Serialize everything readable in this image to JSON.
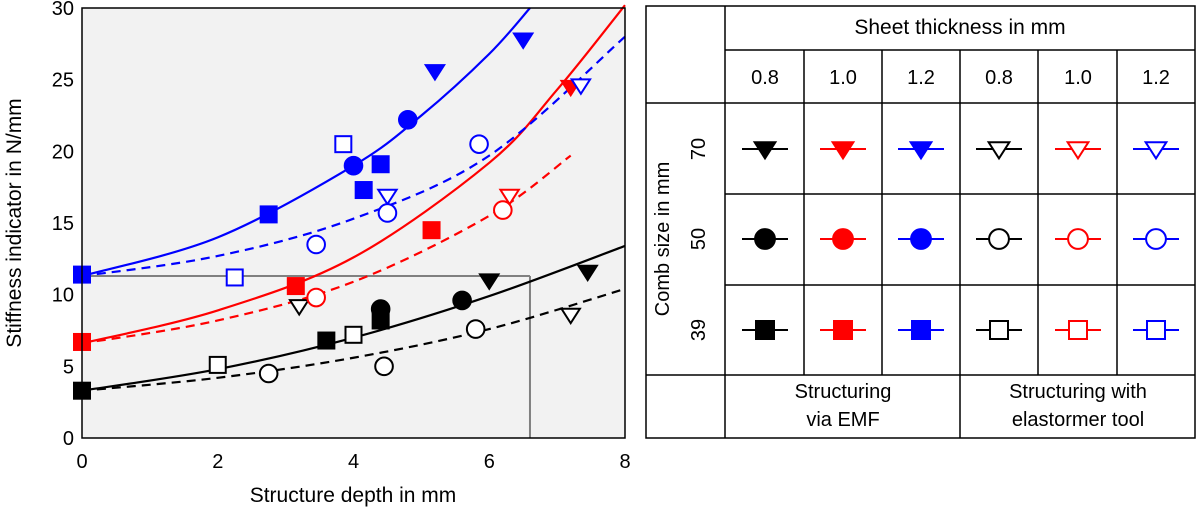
{
  "chart_data": {
    "type": "scatter",
    "title": "",
    "xlabel": "Structure depth in mm",
    "ylabel": "Stiffness indicator in N/mm",
    "xlim": [
      0,
      8
    ],
    "ylim": [
      0,
      30
    ],
    "xticks": [
      0,
      2,
      4,
      6,
      8
    ],
    "yticks": [
      0,
      5,
      10,
      15,
      20,
      25,
      30
    ],
    "colors": {
      "0.8": "#000000",
      "1.0": "#ff0000",
      "1.2": "#0000ff"
    },
    "reference_point": {
      "x": 6.6,
      "y": 11.3
    },
    "series": [
      {
        "name": "EMF 0.8 mm comb 70",
        "thickness": "0.8",
        "comb": 70,
        "method": "EMF",
        "points": [
          [
            6.0,
            11.0
          ],
          [
            7.45,
            11.6
          ]
        ]
      },
      {
        "name": "EMF 0.8 mm comb 50",
        "thickness": "0.8",
        "comb": 50,
        "method": "EMF",
        "points": [
          [
            4.4,
            9.0
          ],
          [
            5.6,
            9.6
          ]
        ]
      },
      {
        "name": "EMF 0.8 mm comb 39",
        "thickness": "0.8",
        "comb": 39,
        "method": "EMF",
        "points": [
          [
            0.0,
            3.3
          ],
          [
            3.6,
            6.8
          ],
          [
            4.4,
            8.2
          ]
        ]
      },
      {
        "name": "EMF 1.0 mm comb 70",
        "thickness": "1.0",
        "comb": 70,
        "method": "EMF",
        "points": [
          [
            7.2,
            24.5
          ]
        ]
      },
      {
        "name": "EMF 1.0 mm comb 50",
        "thickness": "1.0",
        "comb": 50,
        "method": "EMF",
        "points": []
      },
      {
        "name": "EMF 1.0 mm comb 39",
        "thickness": "1.0",
        "comb": 39,
        "method": "EMF",
        "points": [
          [
            0.0,
            6.7
          ],
          [
            3.15,
            10.6
          ],
          [
            5.15,
            14.5
          ]
        ]
      },
      {
        "name": "EMF 1.2 mm comb 70",
        "thickness": "1.2",
        "comb": 70,
        "method": "EMF",
        "points": [
          [
            5.2,
            25.6
          ],
          [
            6.5,
            27.8
          ]
        ]
      },
      {
        "name": "EMF 1.2 mm comb 50",
        "thickness": "1.2",
        "comb": 50,
        "method": "EMF",
        "points": [
          [
            4.0,
            19.0
          ],
          [
            4.8,
            22.2
          ]
        ]
      },
      {
        "name": "EMF 1.2 mm comb 39",
        "thickness": "1.2",
        "comb": 39,
        "method": "EMF",
        "points": [
          [
            0.0,
            11.4
          ],
          [
            2.75,
            15.6
          ],
          [
            4.15,
            17.3
          ],
          [
            4.4,
            19.1
          ]
        ]
      },
      {
        "name": "Elastomer 0.8 mm comb 70",
        "thickness": "0.8",
        "comb": 70,
        "method": "Elastomer",
        "points": [
          [
            3.2,
            9.2
          ],
          [
            7.2,
            8.6
          ]
        ]
      },
      {
        "name": "Elastomer 0.8 mm comb 50",
        "thickness": "0.8",
        "comb": 50,
        "method": "Elastomer",
        "points": [
          [
            2.75,
            4.5
          ],
          [
            4.45,
            5.0
          ],
          [
            5.8,
            7.6
          ]
        ]
      },
      {
        "name": "Elastomer 0.8 mm comb 39",
        "thickness": "0.8",
        "comb": 39,
        "method": "Elastomer",
        "points": [
          [
            2.0,
            5.1
          ],
          [
            4.0,
            7.2
          ]
        ]
      },
      {
        "name": "Elastomer 1.0 mm comb 70",
        "thickness": "1.0",
        "comb": 70,
        "method": "Elastomer",
        "points": [
          [
            6.3,
            16.9
          ]
        ]
      },
      {
        "name": "Elastomer 1.0 mm comb 50",
        "thickness": "1.0",
        "comb": 50,
        "method": "Elastomer",
        "points": [
          [
            3.45,
            9.8
          ],
          [
            6.2,
            15.9
          ]
        ]
      },
      {
        "name": "Elastomer 1.0 mm comb 39",
        "thickness": "1.0",
        "comb": 39,
        "method": "Elastomer",
        "points": []
      },
      {
        "name": "Elastomer 1.2 mm comb 70",
        "thickness": "1.2",
        "comb": 70,
        "method": "Elastomer",
        "points": [
          [
            4.5,
            16.9
          ],
          [
            7.35,
            24.6
          ]
        ]
      },
      {
        "name": "Elastomer 1.2 mm comb 50",
        "thickness": "1.2",
        "comb": 50,
        "method": "Elastomer",
        "points": [
          [
            3.45,
            13.5
          ],
          [
            4.5,
            15.7
          ],
          [
            5.85,
            20.5
          ]
        ]
      },
      {
        "name": "Elastomer 1.2 mm comb 39",
        "thickness": "1.2",
        "comb": 39,
        "method": "Elastomer",
        "points": [
          [
            2.25,
            11.2
          ],
          [
            3.85,
            20.5
          ]
        ]
      }
    ],
    "trendlines": [
      {
        "name": "EMF 0.8 mm fit",
        "thickness": "0.8",
        "style": "solid",
        "x": [
          0,
          2,
          4,
          6,
          8
        ],
        "y": [
          3.3,
          4.8,
          7.0,
          9.9,
          13.4
        ]
      },
      {
        "name": "Elastomer 0.8 mm fit",
        "thickness": "0.8",
        "style": "dashed",
        "x": [
          0,
          2,
          4,
          6,
          8
        ],
        "y": [
          3.3,
          4.2,
          5.6,
          7.6,
          10.4
        ]
      },
      {
        "name": "EMF 1.0 mm fit",
        "thickness": "1.0",
        "style": "solid",
        "x": [
          0,
          2,
          4,
          6,
          7,
          8
        ],
        "y": [
          6.6,
          8.9,
          12.6,
          19.2,
          24.3,
          30.2
        ]
      },
      {
        "name": "Elastomer 1.0 mm fit",
        "thickness": "1.0",
        "style": "dashed",
        "x": [
          0,
          2,
          4,
          6,
          7.2
        ],
        "y": [
          6.6,
          8.2,
          10.9,
          15.5,
          19.7
        ]
      },
      {
        "name": "EMF 1.2 mm fit",
        "thickness": "1.2",
        "style": "solid",
        "x": [
          0,
          2,
          4,
          5,
          6,
          6.6
        ],
        "y": [
          11.3,
          14.0,
          19.0,
          22.5,
          26.8,
          30.0
        ]
      },
      {
        "name": "Elastomer 1.2 mm fit",
        "thickness": "1.2",
        "style": "dashed",
        "x": [
          0,
          2,
          4,
          6,
          8
        ],
        "y": [
          11.3,
          12.7,
          15.3,
          19.7,
          28.0
        ]
      }
    ]
  },
  "legend": {
    "header": "Sheet thickness in mm",
    "thickness_labels": [
      "0.8",
      "1.0",
      "1.2",
      "0.8",
      "1.0",
      "1.2"
    ],
    "row_axis_label": "Comb size in mm",
    "row_labels": [
      "70",
      "50",
      "39"
    ],
    "row_shapes": [
      "triangle",
      "circle",
      "square"
    ],
    "group_emf_line1": "Structuring",
    "group_emf_line2": "via EMF",
    "group_elastomer_line1": "Structuring with",
    "group_elastomer_line2": "elastormer tool"
  }
}
